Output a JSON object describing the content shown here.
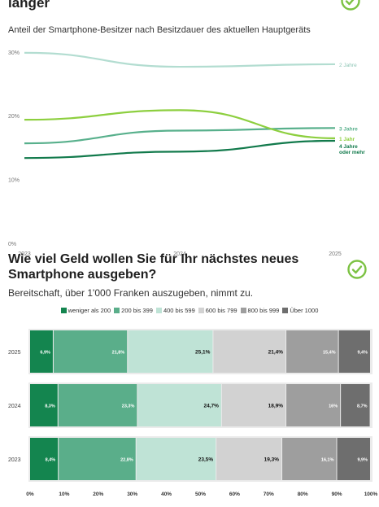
{
  "top": {
    "title_fragment": "länger",
    "subtitle": "Anteil der Smartphone-Besitzer nach Besitzdauer des aktuellen Hauptgeräts"
  },
  "bottom": {
    "title_line1": "Wie viel Geld wollen Sie für Ihr nächstes neues",
    "title_line2": "Smartphone ausgeben?",
    "subtitle": "Bereitschaft, über 1'000 Franken auszugeben, nimmt zu."
  },
  "colors": {
    "line_2j": "#b3ddd1",
    "line_3j": "#58b08c",
    "line_1j": "#8dcf3f",
    "line_4j": "#127a4c",
    "check": "#7cc243"
  },
  "chart_data": [
    {
      "type": "line",
      "x": [
        "2023",
        "2024",
        "2025"
      ],
      "ylim": [
        0,
        31
      ],
      "y_ticks": [
        "0%",
        "10%",
        "20%",
        "30%"
      ],
      "series": [
        {
          "name": "2 Jahre",
          "values": [
            30,
            27.8,
            28.2
          ],
          "color_key": "line_2j"
        },
        {
          "name": "3 Jahre",
          "values": [
            15.8,
            17.8,
            18.2
          ],
          "color_key": "line_3j"
        },
        {
          "name": "1 Jahr",
          "values": [
            19.5,
            21,
            16.6
          ],
          "color_key": "line_1j"
        },
        {
          "name": "4 Jahre oder mehr",
          "values": [
            13.5,
            14.5,
            16.2
          ],
          "color_key": "line_4j"
        }
      ]
    },
    {
      "type": "bar",
      "orientation": "horizontal",
      "stacked": true,
      "categories": [
        "2025",
        "2024",
        "2023"
      ],
      "x_ticks": [
        "0%",
        "10%",
        "20%",
        "30%",
        "40%",
        "50%",
        "60%",
        "70%",
        "80%",
        "90%",
        "100%"
      ],
      "xlim": [
        0,
        100
      ],
      "series": [
        {
          "name": "weniger als 200",
          "color": "#14854f",
          "label_color": "#ffffff",
          "values": [
            6.9,
            8.3,
            8.4
          ],
          "labels": [
            "6,9%",
            "8,3%",
            "8,4%"
          ]
        },
        {
          "name": "200 bis 399",
          "color": "#5aae8a",
          "label_color": "#ffffff",
          "values": [
            21.8,
            23.3,
            22.8
          ],
          "labels": [
            "21,8%",
            "23,3%",
            "22,8%"
          ]
        },
        {
          "name": "400 bis 599",
          "color": "#bfe3d6",
          "label_color": "#111111",
          "values": [
            25.1,
            24.7,
            23.5
          ],
          "labels": [
            "25,1%",
            "24,7%",
            "23,5%"
          ]
        },
        {
          "name": "600 bis 799",
          "color": "#d2d2d2",
          "label_color": "#111111",
          "values": [
            21.4,
            18.9,
            19.3
          ],
          "labels": [
            "21,4%",
            "18,9%",
            "19,3%"
          ]
        },
        {
          "name": "800 bis 999",
          "color": "#9e9e9e",
          "label_color": "#ffffff",
          "values": [
            15.4,
            16,
            16.1
          ],
          "labels": [
            "15,4%",
            "16%",
            "16,1%"
          ]
        },
        {
          "name": "Über 1000",
          "color": "#6e6e6e",
          "label_color": "#ffffff",
          "values": [
            9.4,
            8.7,
            9.9
          ],
          "labels": [
            "9,4%",
            "8,7%",
            "9,9%"
          ]
        }
      ]
    }
  ]
}
